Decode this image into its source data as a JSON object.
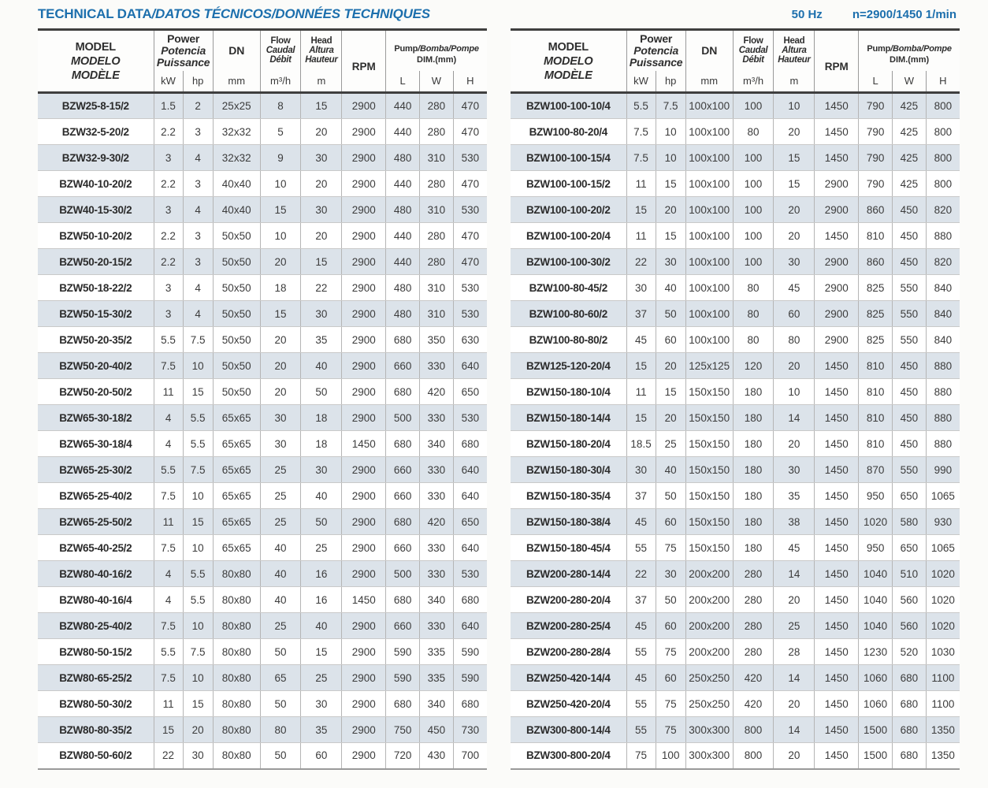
{
  "page": {
    "title_upright": "TECHNICAL DATA",
    "title_italic": "/DATOS TÉCNICOS/DONNÉES TECHNIQUES",
    "frequency": "50 Hz",
    "speed": "n=2900/1450 1/min"
  },
  "colors": {
    "accent_blue": "#1c6fad",
    "row_shade": "#dce3ea",
    "heavy_border": "#3f3f3f",
    "light_border": "#b5b5b5"
  },
  "table_header": {
    "model_lines": [
      "MODEL",
      "MODELO",
      "MODÈLE"
    ],
    "power_lines": [
      "Power",
      "Potencia",
      "Puissance"
    ],
    "power_units": [
      "kW",
      "hp"
    ],
    "dn_label": "DN",
    "dn_unit": "mm",
    "flow_lines": [
      "Flow",
      "Caudal",
      "Débit"
    ],
    "flow_unit": "m³/h",
    "head_lines": [
      "Head",
      "Altura",
      "Hauteur"
    ],
    "head_unit": "m",
    "rpm_label": "RPM",
    "dim_title_upright": "Pump",
    "dim_title_italic": "/Bomba/Pompe",
    "dim_subtitle": "DIM.(mm)",
    "dim_units": [
      "L",
      "W",
      "H"
    ]
  },
  "tables": [
    {
      "rows": [
        [
          "BZW25-8-15/2",
          "1.5",
          "2",
          "25x25",
          "8",
          "15",
          "2900",
          "440",
          "280",
          "470"
        ],
        [
          "BZW32-5-20/2",
          "2.2",
          "3",
          "32x32",
          "5",
          "20",
          "2900",
          "440",
          "280",
          "470"
        ],
        [
          "BZW32-9-30/2",
          "3",
          "4",
          "32x32",
          "9",
          "30",
          "2900",
          "480",
          "310",
          "530"
        ],
        [
          "BZW40-10-20/2",
          "2.2",
          "3",
          "40x40",
          "10",
          "20",
          "2900",
          "440",
          "280",
          "470"
        ],
        [
          "BZW40-15-30/2",
          "3",
          "4",
          "40x40",
          "15",
          "30",
          "2900",
          "480",
          "310",
          "530"
        ],
        [
          "BZW50-10-20/2",
          "2.2",
          "3",
          "50x50",
          "10",
          "20",
          "2900",
          "440",
          "280",
          "470"
        ],
        [
          "BZW50-20-15/2",
          "2.2",
          "3",
          "50x50",
          "20",
          "15",
          "2900",
          "440",
          "280",
          "470"
        ],
        [
          "BZW50-18-22/2",
          "3",
          "4",
          "50x50",
          "18",
          "22",
          "2900",
          "480",
          "310",
          "530"
        ],
        [
          "BZW50-15-30/2",
          "3",
          "4",
          "50x50",
          "15",
          "30",
          "2900",
          "480",
          "310",
          "530"
        ],
        [
          "BZW50-20-35/2",
          "5.5",
          "7.5",
          "50x50",
          "20",
          "35",
          "2900",
          "680",
          "350",
          "630"
        ],
        [
          "BZW50-20-40/2",
          "7.5",
          "10",
          "50x50",
          "20",
          "40",
          "2900",
          "660",
          "330",
          "640"
        ],
        [
          "BZW50-20-50/2",
          "11",
          "15",
          "50x50",
          "20",
          "50",
          "2900",
          "680",
          "420",
          "650"
        ],
        [
          "BZW65-30-18/2",
          "4",
          "5.5",
          "65x65",
          "30",
          "18",
          "2900",
          "500",
          "330",
          "530"
        ],
        [
          "BZW65-30-18/4",
          "4",
          "5.5",
          "65x65",
          "30",
          "18",
          "1450",
          "680",
          "340",
          "680"
        ],
        [
          "BZW65-25-30/2",
          "5.5",
          "7.5",
          "65x65",
          "25",
          "30",
          "2900",
          "660",
          "330",
          "640"
        ],
        [
          "BZW65-25-40/2",
          "7.5",
          "10",
          "65x65",
          "25",
          "40",
          "2900",
          "660",
          "330",
          "640"
        ],
        [
          "BZW65-25-50/2",
          "11",
          "15",
          "65x65",
          "25",
          "50",
          "2900",
          "680",
          "420",
          "650"
        ],
        [
          "BZW65-40-25/2",
          "7.5",
          "10",
          "65x65",
          "40",
          "25",
          "2900",
          "660",
          "330",
          "640"
        ],
        [
          "BZW80-40-16/2",
          "4",
          "5.5",
          "80x80",
          "40",
          "16",
          "2900",
          "500",
          "330",
          "530"
        ],
        [
          "BZW80-40-16/4",
          "4",
          "5.5",
          "80x80",
          "40",
          "16",
          "1450",
          "680",
          "340",
          "680"
        ],
        [
          "BZW80-25-40/2",
          "7.5",
          "10",
          "80x80",
          "25",
          "40",
          "2900",
          "660",
          "330",
          "640"
        ],
        [
          "BZW80-50-15/2",
          "5.5",
          "7.5",
          "80x80",
          "50",
          "15",
          "2900",
          "590",
          "335",
          "590"
        ],
        [
          "BZW80-65-25/2",
          "7.5",
          "10",
          "80x80",
          "65",
          "25",
          "2900",
          "590",
          "335",
          "590"
        ],
        [
          "BZW80-50-30/2",
          "11",
          "15",
          "80x80",
          "50",
          "30",
          "2900",
          "680",
          "340",
          "680"
        ],
        [
          "BZW80-80-35/2",
          "15",
          "20",
          "80x80",
          "80",
          "35",
          "2900",
          "750",
          "450",
          "730"
        ],
        [
          "BZW80-50-60/2",
          "22",
          "30",
          "80x80",
          "50",
          "60",
          "2900",
          "720",
          "430",
          "700"
        ]
      ]
    },
    {
      "rows": [
        [
          "BZW100-100-10/4",
          "5.5",
          "7.5",
          "100x100",
          "100",
          "10",
          "1450",
          "790",
          "425",
          "800"
        ],
        [
          "BZW100-80-20/4",
          "7.5",
          "10",
          "100x100",
          "80",
          "20",
          "1450",
          "790",
          "425",
          "800"
        ],
        [
          "BZW100-100-15/4",
          "7.5",
          "10",
          "100x100",
          "100",
          "15",
          "1450",
          "790",
          "425",
          "800"
        ],
        [
          "BZW100-100-15/2",
          "11",
          "15",
          "100x100",
          "100",
          "15",
          "2900",
          "790",
          "425",
          "800"
        ],
        [
          "BZW100-100-20/2",
          "15",
          "20",
          "100x100",
          "100",
          "20",
          "2900",
          "860",
          "450",
          "820"
        ],
        [
          "BZW100-100-20/4",
          "11",
          "15",
          "100x100",
          "100",
          "20",
          "1450",
          "810",
          "450",
          "880"
        ],
        [
          "BZW100-100-30/2",
          "22",
          "30",
          "100x100",
          "100",
          "30",
          "2900",
          "860",
          "450",
          "820"
        ],
        [
          "BZW100-80-45/2",
          "30",
          "40",
          "100x100",
          "80",
          "45",
          "2900",
          "825",
          "550",
          "840"
        ],
        [
          "BZW100-80-60/2",
          "37",
          "50",
          "100x100",
          "80",
          "60",
          "2900",
          "825",
          "550",
          "840"
        ],
        [
          "BZW100-80-80/2",
          "45",
          "60",
          "100x100",
          "80",
          "80",
          "2900",
          "825",
          "550",
          "840"
        ],
        [
          "BZW125-120-20/4",
          "15",
          "20",
          "125x125",
          "120",
          "20",
          "1450",
          "810",
          "450",
          "880"
        ],
        [
          "BZW150-180-10/4",
          "11",
          "15",
          "150x150",
          "180",
          "10",
          "1450",
          "810",
          "450",
          "880"
        ],
        [
          "BZW150-180-14/4",
          "15",
          "20",
          "150x150",
          "180",
          "14",
          "1450",
          "810",
          "450",
          "880"
        ],
        [
          "BZW150-180-20/4",
          "18.5",
          "25",
          "150x150",
          "180",
          "20",
          "1450",
          "810",
          "450",
          "880"
        ],
        [
          "BZW150-180-30/4",
          "30",
          "40",
          "150x150",
          "180",
          "30",
          "1450",
          "870",
          "550",
          "990"
        ],
        [
          "BZW150-180-35/4",
          "37",
          "50",
          "150x150",
          "180",
          "35",
          "1450",
          "950",
          "650",
          "1065"
        ],
        [
          "BZW150-180-38/4",
          "45",
          "60",
          "150x150",
          "180",
          "38",
          "1450",
          "1020",
          "580",
          "930"
        ],
        [
          "BZW150-180-45/4",
          "55",
          "75",
          "150x150",
          "180",
          "45",
          "1450",
          "950",
          "650",
          "1065"
        ],
        [
          "BZW200-280-14/4",
          "22",
          "30",
          "200x200",
          "280",
          "14",
          "1450",
          "1040",
          "510",
          "1020"
        ],
        [
          "BZW200-280-20/4",
          "37",
          "50",
          "200x200",
          "280",
          "20",
          "1450",
          "1040",
          "560",
          "1020"
        ],
        [
          "BZW200-280-25/4",
          "45",
          "60",
          "200x200",
          "280",
          "25",
          "1450",
          "1040",
          "560",
          "1020"
        ],
        [
          "BZW200-280-28/4",
          "55",
          "75",
          "200x200",
          "280",
          "28",
          "1450",
          "1230",
          "520",
          "1030"
        ],
        [
          "BZW250-420-14/4",
          "45",
          "60",
          "250x250",
          "420",
          "14",
          "1450",
          "1060",
          "680",
          "1100"
        ],
        [
          "BZW250-420-20/4",
          "55",
          "75",
          "250x250",
          "420",
          "20",
          "1450",
          "1060",
          "680",
          "1100"
        ],
        [
          "BZW300-800-14/4",
          "55",
          "75",
          "300x300",
          "800",
          "14",
          "1450",
          "1500",
          "680",
          "1350"
        ],
        [
          "BZW300-800-20/4",
          "75",
          "100",
          "300x300",
          "800",
          "20",
          "1450",
          "1500",
          "680",
          "1350"
        ]
      ]
    }
  ]
}
